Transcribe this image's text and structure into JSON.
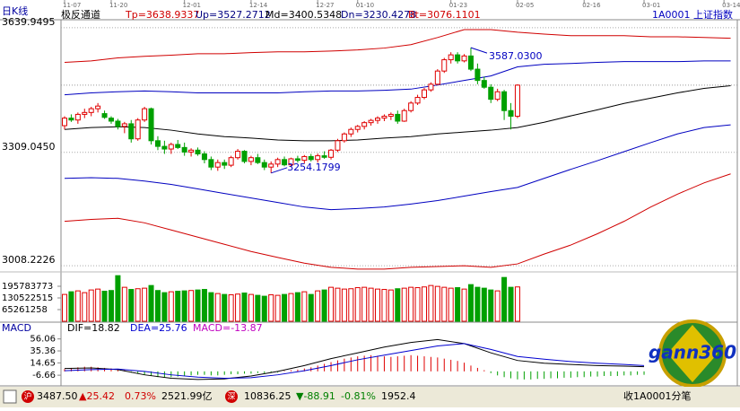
{
  "header": {
    "period": "日K线",
    "indicator": "极反通道",
    "tp": "Tp=3638.9337",
    "up": "Up=3527.2712",
    "md": "Md=3400.5348",
    "dn": "Dn=3230.4278",
    "bt": "Bt=3076.1101",
    "symbol": "1A0001 上证指数"
  },
  "price_chart": {
    "ylim": [
      2991.7,
      3661.2
    ],
    "yticks": [
      {
        "value": 3639.9495,
        "label": "3639.9495"
      },
      {
        "value": 3309.045,
        "label": "3309.0450"
      },
      {
        "value": 3008.2226,
        "label": "3008.2226"
      }
    ],
    "xlim": [
      0,
      101
    ],
    "xticks": [
      {
        "value": 0,
        "label": "11-07"
      },
      {
        "value": 7,
        "label": "11-20"
      },
      {
        "value": 18,
        "label": "12-01"
      },
      {
        "value": 28,
        "label": "12-14"
      },
      {
        "value": 38,
        "label": "12-27"
      },
      {
        "value": 44,
        "label": "01-10"
      },
      {
        "value": 58,
        "label": "01-23"
      },
      {
        "value": 68,
        "label": "02-05"
      },
      {
        "value": 78,
        "label": "02-16"
      },
      {
        "value": 87,
        "label": "03-01"
      },
      {
        "value": 99,
        "label": "03-14"
      }
    ],
    "up_color": "#e00000",
    "down_color": "#00a000",
    "candles": [
      [
        3380,
        3405,
        3370,
        3400
      ],
      [
        3400,
        3410,
        3390,
        3395
      ],
      [
        3395,
        3415,
        3385,
        3410
      ],
      [
        3410,
        3425,
        3400,
        3415
      ],
      [
        3415,
        3430,
        3405,
        3425
      ],
      [
        3425,
        3440,
        3415,
        3432
      ],
      [
        3412,
        3420,
        3398,
        3402
      ],
      [
        3400,
        3405,
        3385,
        3392
      ],
      [
        3392,
        3398,
        3370,
        3378
      ],
      [
        3378,
        3390,
        3360,
        3385
      ],
      [
        3385,
        3395,
        3335,
        3345
      ],
      [
        3345,
        3400,
        3340,
        3395
      ],
      [
        3395,
        3430,
        3390,
        3425
      ],
      [
        3425,
        3428,
        3330,
        3340
      ],
      [
        3340,
        3352,
        3315,
        3325
      ],
      [
        3325,
        3340,
        3305,
        3318
      ],
      [
        3318,
        3335,
        3305,
        3330
      ],
      [
        3330,
        3342,
        3318,
        3322
      ],
      [
        3322,
        3335,
        3300,
        3310
      ],
      [
        3310,
        3320,
        3298,
        3315
      ],
      [
        3315,
        3322,
        3300,
        3305
      ],
      [
        3305,
        3312,
        3280,
        3290
      ],
      [
        3290,
        3298,
        3262,
        3270
      ],
      [
        3270,
        3290,
        3260,
        3282
      ],
      [
        3282,
        3290,
        3265,
        3275
      ],
      [
        3275,
        3300,
        3270,
        3295
      ],
      [
        3295,
        3318,
        3290,
        3312
      ],
      [
        3312,
        3315,
        3280,
        3285
      ],
      [
        3285,
        3300,
        3275,
        3295
      ],
      [
        3295,
        3305,
        3278,
        3282
      ],
      [
        3282,
        3290,
        3262,
        3270
      ],
      [
        3270,
        3285,
        3254.1799,
        3278
      ],
      [
        3278,
        3295,
        3270,
        3290
      ],
      [
        3290,
        3298,
        3272,
        3276
      ],
      [
        3276,
        3295,
        3270,
        3292
      ],
      [
        3292,
        3300,
        3282,
        3288
      ],
      [
        3288,
        3302,
        3280,
        3298
      ],
      [
        3298,
        3305,
        3285,
        3290
      ],
      [
        3290,
        3306,
        3282,
        3300
      ],
      [
        3300,
        3312,
        3292,
        3296
      ],
      [
        3296,
        3318,
        3290,
        3315
      ],
      [
        3315,
        3345,
        3310,
        3340
      ],
      [
        3340,
        3362,
        3335,
        3358
      ],
      [
        3358,
        3375,
        3350,
        3370
      ],
      [
        3370,
        3382,
        3362,
        3378
      ],
      [
        3378,
        3392,
        3370,
        3388
      ],
      [
        3388,
        3398,
        3380,
        3394
      ],
      [
        3394,
        3405,
        3385,
        3400
      ],
      [
        3400,
        3410,
        3392,
        3405
      ],
      [
        3405,
        3415,
        3395,
        3410
      ],
      [
        3410,
        3420,
        3385,
        3392
      ],
      [
        3392,
        3425,
        3390,
        3420
      ],
      [
        3420,
        3445,
        3415,
        3440
      ],
      [
        3440,
        3462,
        3435,
        3455
      ],
      [
        3455,
        3480,
        3450,
        3475
      ],
      [
        3475,
        3495,
        3470,
        3490
      ],
      [
        3490,
        3530,
        3488,
        3525
      ],
      [
        3525,
        3560,
        3520,
        3555
      ],
      [
        3555,
        3575,
        3545,
        3568
      ],
      [
        3568,
        3575,
        3545,
        3552
      ],
      [
        3552,
        3570,
        3548,
        3565
      ],
      [
        3565,
        3587.03,
        3525,
        3530
      ],
      [
        3530,
        3545,
        3490,
        3500
      ],
      [
        3500,
        3510,
        3478,
        3482
      ],
      [
        3482,
        3490,
        3440,
        3450
      ],
      [
        3450,
        3478,
        3445,
        3470
      ],
      [
        3470,
        3475,
        3395,
        3420
      ],
      [
        3420,
        3440,
        3370,
        3405
      ],
      [
        3405,
        3490,
        3400,
        3487.5
      ]
    ],
    "high_label": "3587.0300",
    "low_label": "3254.1799",
    "band_x": [
      0,
      4,
      8,
      12,
      16,
      20,
      24,
      28,
      32,
      36,
      40,
      44,
      48,
      52,
      56,
      60,
      64,
      68,
      72,
      76,
      80,
      84,
      88,
      92,
      96,
      100
    ],
    "bands": [
      {
        "color": "#d00000",
        "values": [
          3548,
          3552,
          3560,
          3564,
          3567,
          3571,
          3571,
          3574,
          3576,
          3576,
          3578,
          3581,
          3586,
          3595,
          3614,
          3635,
          3635,
          3628,
          3623,
          3619,
          3619,
          3619,
          3616,
          3616,
          3614,
          3612
        ]
      },
      {
        "color": "#0000c0",
        "values": [
          3462,
          3467,
          3470,
          3472,
          3470,
          3467,
          3467,
          3467,
          3467,
          3470,
          3472,
          3472,
          3474,
          3477,
          3488,
          3500,
          3512,
          3536,
          3543,
          3545,
          3548,
          3550,
          3550,
          3550,
          3552,
          3552
        ]
      },
      {
        "color": "#000000",
        "values": [
          3370,
          3375,
          3377,
          3375,
          3368,
          3358,
          3351,
          3347,
          3342,
          3340,
          3340,
          3342,
          3347,
          3351,
          3358,
          3363,
          3368,
          3375,
          3389,
          3406,
          3422,
          3439,
          3453,
          3467,
          3479,
          3486
        ]
      },
      {
        "color": "#0000c0",
        "values": [
          3240,
          3242,
          3240,
          3233,
          3224,
          3212,
          3200,
          3188,
          3176,
          3164,
          3157,
          3160,
          3164,
          3172,
          3181,
          3193,
          3205,
          3216,
          3240,
          3264,
          3287,
          3311,
          3335,
          3358,
          3375,
          3382
        ]
      },
      {
        "color": "#d00000",
        "values": [
          3126,
          3131,
          3134,
          3122,
          3103,
          3084,
          3065,
          3046,
          3030,
          3015,
          3004,
          2999,
          2999,
          3004,
          3006,
          3008,
          3004,
          3013,
          3039,
          3063,
          3093,
          3126,
          3164,
          3198,
          3228,
          3252
        ]
      }
    ]
  },
  "volume_chart": {
    "ylim": [
      0,
      276000000
    ],
    "yticks": [
      195783773,
      130522515,
      65261258
    ],
    "values": [
      150000000,
      165000000,
      170000000,
      160000000,
      175000000,
      180000000,
      168000000,
      172000000,
      255000000,
      190000000,
      178000000,
      182000000,
      185000000,
      200000000,
      172000000,
      160000000,
      165000000,
      168000000,
      170000000,
      172000000,
      175000000,
      178000000,
      160000000,
      155000000,
      150000000,
      148000000,
      152000000,
      158000000,
      150000000,
      145000000,
      140000000,
      148000000,
      145000000,
      150000000,
      155000000,
      160000000,
      165000000,
      150000000,
      170000000,
      175000000,
      190000000,
      185000000,
      180000000,
      182000000,
      188000000,
      190000000,
      185000000,
      180000000,
      178000000,
      175000000,
      182000000,
      185000000,
      190000000,
      188000000,
      192000000,
      200000000,
      195000000,
      190000000,
      185000000,
      188000000,
      180000000,
      205000000,
      190000000,
      185000000,
      175000000,
      170000000,
      245000000,
      190000000,
      192000000
    ]
  },
  "macd_chart": {
    "title": "MACD",
    "dif_label": "DIF=18.82",
    "dea_label": "DEA=25.76",
    "macd_label": "MACD=-13.87",
    "ylim": [
      -22,
      68
    ],
    "yticks": [
      56.06,
      35.36,
      14.65,
      -6.66
    ],
    "bars": [
      4,
      6,
      7,
      8,
      8,
      7,
      6,
      5,
      4,
      2,
      -2,
      -4,
      -6,
      -8,
      -10,
      -11,
      -10,
      -9,
      -8,
      -7,
      -6,
      -6,
      -7,
      -7,
      -6,
      -5,
      -5,
      -4,
      -4,
      -3,
      -3,
      -2,
      -2,
      1,
      2,
      3,
      5,
      7,
      10,
      13,
      16,
      19,
      22,
      24,
      26,
      27,
      28,
      27,
      26,
      25,
      26,
      27,
      28,
      27,
      26,
      25,
      24,
      22,
      20,
      18,
      15,
      10,
      6,
      2,
      -3,
      -7,
      -10,
      -12,
      -13.87,
      -14,
      -14,
      -13,
      -13,
      -12,
      -12,
      -11,
      -11,
      -10,
      -10,
      -9,
      -9,
      -8,
      -8,
      -8,
      -7,
      -7,
      -6,
      -6
    ],
    "x": [
      0,
      4,
      8,
      12,
      16,
      20,
      24,
      28,
      32,
      36,
      40,
      44,
      48,
      52,
      56,
      60,
      64,
      68,
      72,
      76,
      80,
      84,
      87
    ],
    "dif": {
      "color": "#000000",
      "values": [
        5,
        6,
        3,
        -6,
        -12,
        -14,
        -13,
        -8,
        0,
        10,
        22,
        32,
        42,
        50,
        55,
        48,
        32,
        18.82,
        14,
        12,
        10,
        9,
        8
      ]
    },
    "dea": {
      "color": "#0000d0",
      "values": [
        1,
        3,
        4,
        0,
        -6,
        -10,
        -12,
        -11,
        -6,
        1,
        10,
        20,
        28,
        36,
        44,
        48,
        38,
        25.76,
        21,
        17,
        14,
        12,
        10
      ]
    }
  },
  "logo": {
    "text": "gann360"
  },
  "status_bar": {
    "sh_label": "沪",
    "sh_price": "3487.50",
    "sh_change": "▲25.42",
    "sh_pct": "0.73%",
    "sh_amount": "2521.99亿",
    "sz_label": "深",
    "sz_price": "10836.25",
    "sz_change": "▼-88.91",
    "sz_pct": "-0.81%",
    "sz_amount": "1952.4",
    "tick_label": "收1A0001分笔"
  }
}
